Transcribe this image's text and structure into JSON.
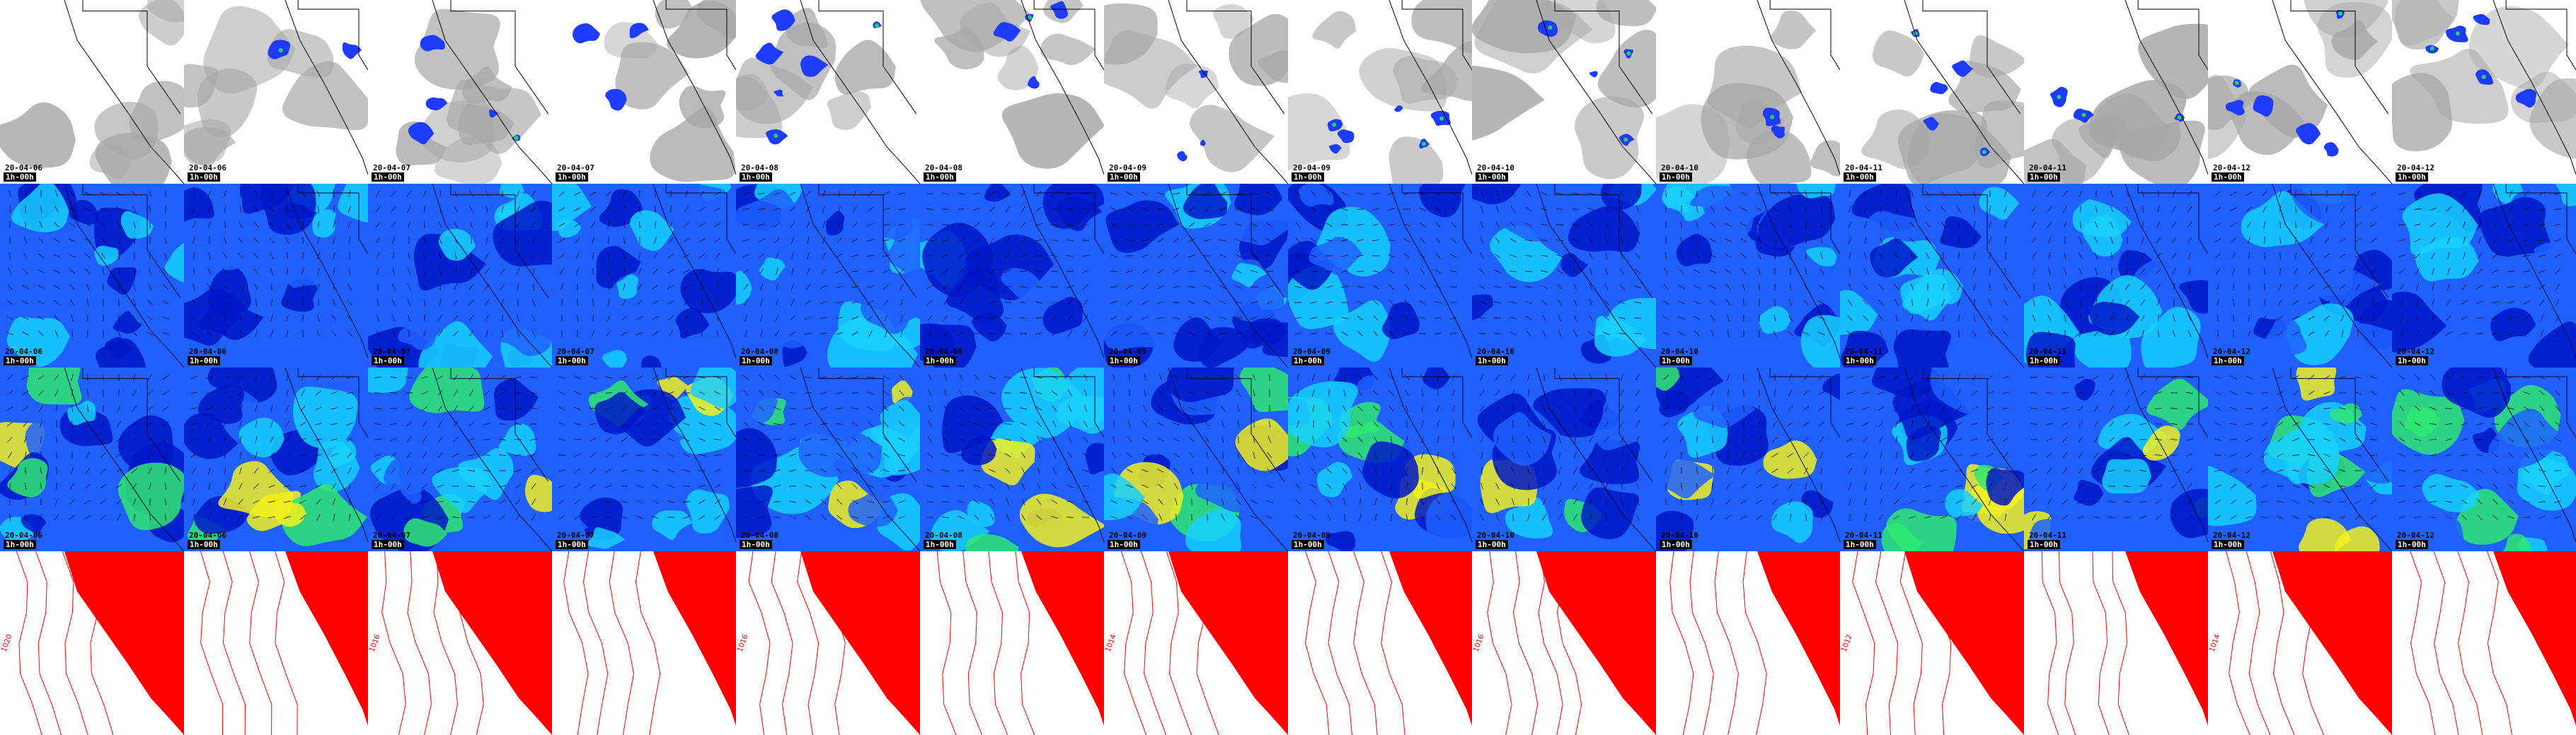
{
  "colors": {
    "cloud_white": "#ffffff",
    "cloud_gray": "#a7a7a7",
    "precip_blue": "#1e3cff",
    "precip_green": "#28d25a",
    "wind_navy": "#0016c8",
    "wind_blue": "#2060ff",
    "wind_cyan": "#18d0ff",
    "wind_green": "#30e870",
    "wind_yellow": "#f2f020",
    "pressure_red": "#ff0000",
    "coast_black": "#000000"
  },
  "rows": [
    {
      "id": "cloud-precip",
      "name": "cloud-precip-row"
    },
    {
      "id": "wind-surface",
      "name": "wind-surface-row"
    },
    {
      "id": "wind-upper",
      "name": "wind-upper-row"
    },
    {
      "id": "pressure",
      "name": "pressure-row"
    }
  ],
  "frames": [
    {
      "date": "20-04-06",
      "run": "1h-00h"
    },
    {
      "date": "20-04-06",
      "run": "1h-00h"
    },
    {
      "date": "20-04-07",
      "run": "1h-00h"
    },
    {
      "date": "20-04-07",
      "run": "1h-00h"
    },
    {
      "date": "20-04-08",
      "run": "1h-00h"
    },
    {
      "date": "20-04-08",
      "run": "1h-00h"
    },
    {
      "date": "20-04-09",
      "run": "1h-00h"
    },
    {
      "date": "20-04-09",
      "run": "1h-00h"
    },
    {
      "date": "20-04-10",
      "run": "1h-00h"
    },
    {
      "date": "20-04-10",
      "run": "1h-00h"
    },
    {
      "date": "20-04-11",
      "run": "1h-00h"
    },
    {
      "date": "20-04-11",
      "run": "1h-00h"
    },
    {
      "date": "20-04-12",
      "run": "1h-00h"
    },
    {
      "date": "20-04-12",
      "run": "1h-00h"
    }
  ],
  "isobar_labels": [
    "1020",
    "1016",
    "1016",
    "1014",
    "1016",
    "1012",
    "1014",
    "1012",
    "1020",
    "1016"
  ]
}
